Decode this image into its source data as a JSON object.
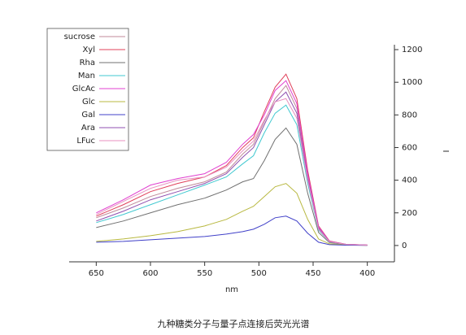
{
  "chart_data": {
    "type": "line",
    "title": "九种糖类分子与量子点连接后荧光光谱",
    "x_label": "nm",
    "y_label": "I",
    "x": [
      650,
      625,
      600,
      575,
      550,
      530,
      515,
      505,
      495,
      485,
      475,
      465,
      455,
      445,
      435,
      420,
      400
    ],
    "xlim": [
      675,
      375
    ],
    "xticks": [
      650,
      600,
      550,
      500,
      450,
      400
    ],
    "ylim": [
      -100,
      1230
    ],
    "yticks": [
      0,
      200,
      400,
      600,
      800,
      1000,
      1200
    ],
    "series": [
      {
        "name": "sucrose",
        "color": "#c08a9a",
        "values": [
          170,
          230,
          300,
          350,
          390,
          450,
          560,
          620,
          760,
          900,
          980,
          840,
          430,
          110,
          25,
          8,
          3
        ]
      },
      {
        "name": "Xyl",
        "color": "#e0405a",
        "values": [
          180,
          250,
          330,
          380,
          420,
          490,
          600,
          660,
          820,
          970,
          1050,
          900,
          460,
          120,
          28,
          8,
          3
        ]
      },
      {
        "name": "Rha",
        "color": "#707070",
        "values": [
          110,
          150,
          200,
          250,
          290,
          340,
          390,
          410,
          520,
          650,
          720,
          620,
          320,
          80,
          18,
          6,
          2
        ]
      },
      {
        "name": "Man",
        "color": "#40c8d0",
        "values": [
          140,
          190,
          250,
          310,
          370,
          420,
          500,
          550,
          690,
          810,
          860,
          740,
          380,
          95,
          22,
          7,
          2
        ]
      },
      {
        "name": "GlcAc",
        "color": "#e040d0",
        "values": [
          200,
          280,
          370,
          410,
          440,
          510,
          620,
          680,
          800,
          950,
          1010,
          870,
          440,
          115,
          26,
          8,
          3
        ]
      },
      {
        "name": "Glc",
        "color": "#b8b840",
        "values": [
          25,
          40,
          60,
          85,
          120,
          160,
          210,
          240,
          300,
          360,
          380,
          320,
          160,
          40,
          10,
          4,
          1
        ]
      },
      {
        "name": "Gal",
        "color": "#4040c8",
        "values": [
          20,
          25,
          35,
          45,
          55,
          70,
          85,
          100,
          130,
          170,
          180,
          150,
          75,
          20,
          5,
          2,
          1
        ]
      },
      {
        "name": "Ara",
        "color": "#9050b0",
        "values": [
          150,
          210,
          280,
          330,
          380,
          440,
          540,
          600,
          740,
          880,
          940,
          810,
          410,
          105,
          24,
          7,
          2
        ]
      },
      {
        "name": "LFuc",
        "color": "#e890c0",
        "values": [
          190,
          270,
          350,
          400,
          420,
          480,
          580,
          640,
          770,
          880,
          900,
          780,
          400,
          100,
          23,
          7,
          2
        ]
      }
    ]
  }
}
